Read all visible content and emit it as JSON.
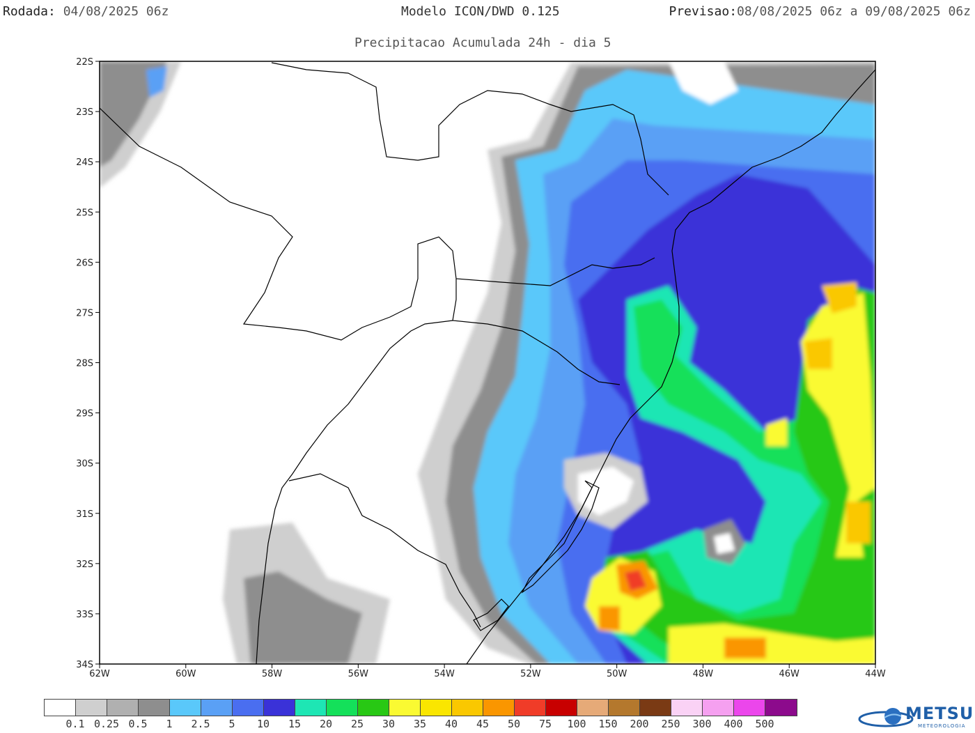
{
  "header": {
    "run_label": "Rodada:",
    "run_value": "04/08/2025 06z",
    "model": "Modelo ICON/DWD 0.125",
    "forecast_label": "Previsao:",
    "forecast_value": "08/08/2025 06z a 09/08/2025 06z",
    "subtitle": "Precipitacao Acumulada 24h - dia 5"
  },
  "map": {
    "lat_labels": [
      "22S",
      "23S",
      "24S",
      "25S",
      "26S",
      "27S",
      "28S",
      "29S",
      "30S",
      "31S",
      "32S",
      "33S",
      "34S"
    ],
    "lon_labels": [
      "62W",
      "60W",
      "58W",
      "56W",
      "54W",
      "52W",
      "50W",
      "48W",
      "46W",
      "44W"
    ],
    "extent": {
      "lon_min": -62,
      "lon_max": -44,
      "lat_min": -34,
      "lat_max": -22
    }
  },
  "colorbar": {
    "colors": [
      "#ffffff",
      "#cfcfcf",
      "#b0b0b0",
      "#8e8e8e",
      "#5ac8fa",
      "#5aa0f5",
      "#4a6ef0",
      "#3a32d8",
      "#1ee6b4",
      "#14e05a",
      "#28c814",
      "#fafa32",
      "#fae600",
      "#fac800",
      "#fa9600",
      "#f03c28",
      "#c80000",
      "#e6aa78",
      "#b4782d",
      "#7a3a14",
      "#fad2f5",
      "#f5a0f0",
      "#eb46eb",
      "#8c0a8c"
    ],
    "labels": [
      "0.1",
      "0.25",
      "0.5",
      "1",
      "2.5",
      "5",
      "10",
      "15",
      "20",
      "25",
      "30",
      "35",
      "40",
      "45",
      "50",
      "75",
      "100",
      "150",
      "200",
      "250",
      "300",
      "400",
      "500"
    ]
  },
  "logo": {
    "text": "METSUL",
    "sub": "METEOROLOGIA"
  }
}
